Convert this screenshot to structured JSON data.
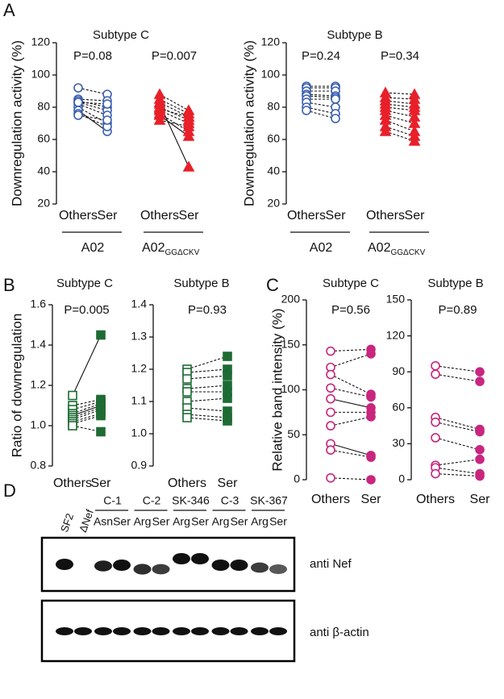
{
  "panel_labels": [
    "A",
    "B",
    "C",
    "D"
  ],
  "chart_data": [
    {
      "type": "slope",
      "title": "Subtype C",
      "y_label": "Downregulation activity (%)",
      "ylim": [
        20,
        120
      ],
      "yticks": [
        20,
        40,
        60,
        80,
        100,
        120
      ],
      "groups": [
        {
          "categories": [
            "Others",
            "Ser"
          ],
          "label": "A02",
          "p_value": "P=0.08",
          "color": "#3a5fb0",
          "others_marker": "circle-open",
          "ser_marker": "circle-open",
          "others": [
            92,
            85,
            84,
            83,
            82,
            80,
            78,
            76,
            75,
            83
          ],
          "ser": [
            88,
            84,
            80,
            78,
            75,
            70,
            65,
            68,
            72,
            82
          ],
          "line_styles": [
            "dashed",
            "dashed",
            "dashed",
            "dashed",
            "dashed",
            "dashed",
            "solid",
            "dashed",
            "dashed",
            "dashed"
          ]
        },
        {
          "categories": [
            "Others",
            "Ser"
          ],
          "label": "A02",
          "label_subscript": "GGΔCKV",
          "p_value": "P=0.007",
          "color": "#e8202a",
          "others_marker": "triangle",
          "ser_marker": "triangle",
          "others": [
            88,
            85,
            83,
            80,
            78,
            76,
            75,
            72,
            82,
            79
          ],
          "ser": [
            78,
            76,
            74,
            72,
            70,
            65,
            62,
            68,
            43,
            74
          ],
          "line_styles": [
            "dashed",
            "dashed",
            "dashed",
            "dashed",
            "dashed",
            "dashed",
            "solid",
            "dashed",
            "solid",
            "dashed"
          ]
        }
      ]
    },
    {
      "type": "slope",
      "title": "Subtype B",
      "y_label": "Downregulation activity (%)",
      "ylim": [
        20,
        120
      ],
      "yticks": [
        20,
        40,
        60,
        80,
        100,
        120
      ],
      "groups": [
        {
          "categories": [
            "Others",
            "Ser"
          ],
          "label": "A02",
          "p_value": "P=0.24",
          "color": "#3a5fb0",
          "others_marker": "circle-open",
          "ser_marker": "circle-open",
          "others": [
            93,
            92,
            90,
            88,
            87,
            85,
            83,
            80,
            78
          ],
          "ser": [
            93,
            92,
            90,
            87,
            86,
            85,
            80,
            76,
            73
          ],
          "line_styles": [
            "dashed",
            "dashed",
            "dashed",
            "dashed",
            "dashed",
            "dashed",
            "dashed",
            "dashed",
            "dashed"
          ]
        },
        {
          "categories": [
            "Others",
            "Ser"
          ],
          "label": "A02",
          "label_subscript": "GGΔCKV",
          "p_value": "P=0.34",
          "color": "#e8202a",
          "others_marker": "triangle",
          "ser_marker": "triangle",
          "others": [
            89,
            86,
            84,
            82,
            80,
            78,
            75,
            72,
            68,
            65
          ],
          "ser": [
            88,
            85,
            82,
            80,
            78,
            74,
            70,
            65,
            62,
            59
          ],
          "line_styles": [
            "dashed",
            "dashed",
            "dashed",
            "dashed",
            "dashed",
            "dashed",
            "dashed",
            "dashed",
            "dashed",
            "dashed"
          ]
        }
      ]
    },
    {
      "type": "slope",
      "title": "Subtype C",
      "y_label": "Ratio of downregulation",
      "ylim": [
        0.8,
        1.6
      ],
      "yticks": [
        0.8,
        {
          "value": 1,
          "label": "1.0"
        },
        1.2,
        1.4,
        1.6
      ],
      "groups": [
        {
          "categories": [
            "Others",
            "Ser"
          ],
          "p_value": "P=0.005",
          "color": "#1e6b34",
          "others_marker": "square-open",
          "ser_marker": "square",
          "others": [
            1.15,
            1.1,
            1.08,
            1.06,
            1.05,
            1.04,
            1.03,
            1.02,
            1.01,
            1.0
          ],
          "ser": [
            1.45,
            1.13,
            1.12,
            1.11,
            1.1,
            1.09,
            1.08,
            1.06,
            1.05,
            0.97
          ],
          "line_styles": [
            "solid",
            "dashed",
            "dashed",
            "dashed",
            "solid",
            "dashed",
            "dashed",
            "dashed",
            "dashed",
            "dashed"
          ]
        }
      ]
    },
    {
      "type": "slope",
      "title": "Subtype B",
      "ylim": [
        0.9,
        1.4
      ],
      "yticks": [
        0.9,
        {
          "value": 1,
          "label": "1.0"
        },
        1.1,
        1.2,
        1.3,
        1.4
      ],
      "groups": [
        {
          "categories": [
            "Others",
            "Ser"
          ],
          "p_value": "P=0.93",
          "color": "#1e6b34",
          "others_marker": "square-open",
          "ser_marker": "square",
          "others": [
            1.2,
            1.19,
            1.17,
            1.14,
            1.13,
            1.1,
            1.08,
            1.06,
            1.05
          ],
          "ser": [
            1.24,
            1.2,
            1.18,
            1.15,
            1.13,
            1.11,
            1.07,
            1.05,
            1.04
          ],
          "line_styles": [
            "dashed",
            "dashed",
            "dashed",
            "dashed",
            "dashed",
            "dashed",
            "dashed",
            "dashed",
            "dashed"
          ]
        }
      ]
    },
    {
      "type": "slope",
      "title": "Subtype C",
      "y_label": "Relative band intensity (%)",
      "ylim": [
        0,
        200
      ],
      "yticks": [
        0,
        50,
        100,
        150,
        200
      ],
      "groups": [
        {
          "categories": [
            "Others",
            "Ser"
          ],
          "p_value": "P=0.56",
          "color": "#c8267f",
          "others_marker": "circle-open",
          "ser_marker": "circle",
          "others": [
            143,
            125,
            117,
            102,
            90,
            75,
            60,
            40,
            33,
            2
          ],
          "ser": [
            145,
            140,
            95,
            92,
            80,
            75,
            70,
            27,
            25,
            0
          ],
          "line_styles": [
            "dashed",
            "dashed",
            "dashed",
            "dashed",
            "solid",
            "dashed",
            "dashed",
            "solid",
            "dashed",
            "dashed"
          ]
        }
      ]
    },
    {
      "type": "slope",
      "title": "Subtype B",
      "ylim": [
        0,
        150
      ],
      "yticks": [
        0,
        30,
        60,
        90,
        120,
        150
      ],
      "groups": [
        {
          "categories": [
            "Others",
            "Ser"
          ],
          "p_value": "P=0.89",
          "color": "#c8267f",
          "others_marker": "circle-open",
          "ser_marker": "circle",
          "others": [
            95,
            88,
            52,
            48,
            35,
            12,
            10,
            5
          ],
          "ser": [
            90,
            82,
            42,
            40,
            25,
            17,
            5,
            3
          ],
          "line_styles": [
            "dashed",
            "dashed",
            "dashed",
            "dashed",
            "dashed",
            "dashed",
            "dashed",
            "dashed"
          ]
        }
      ]
    }
  ],
  "blot": {
    "single_lanes": [
      "SF2",
      "ΔNef"
    ],
    "groups": [
      {
        "name": "C-1",
        "lanes": [
          "Asn",
          "Ser"
        ]
      },
      {
        "name": "C-2",
        "lanes": [
          "Arg",
          "Ser"
        ]
      },
      {
        "name": "SK-346",
        "lanes": [
          "Arg",
          "Ser"
        ]
      },
      {
        "name": "C-3",
        "lanes": [
          "Arg",
          "Ser"
        ]
      },
      {
        "name": "SK-367",
        "lanes": [
          "Arg",
          "Ser"
        ]
      }
    ],
    "rows": [
      "anti Nef",
      "anti β-actin"
    ]
  }
}
